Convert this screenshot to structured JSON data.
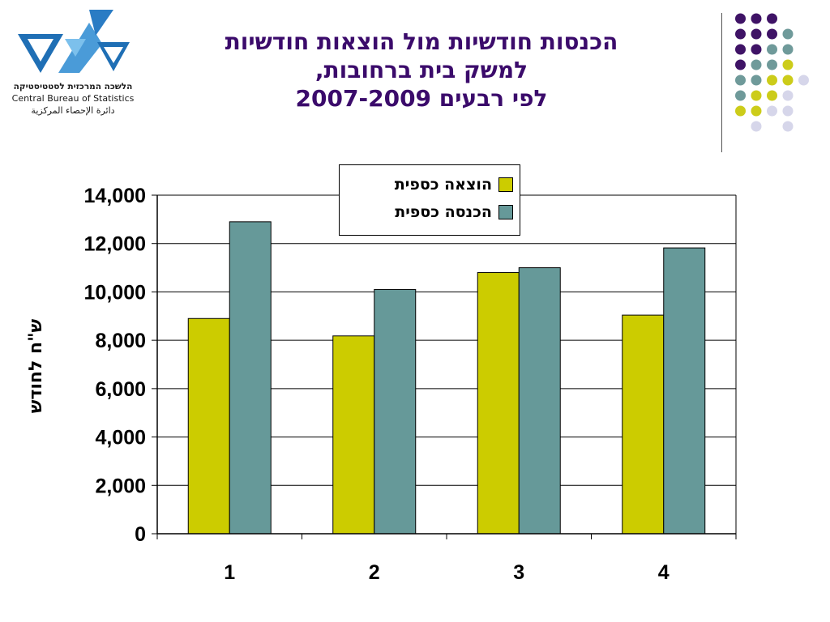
{
  "logo": {
    "name_he": "הלשכה המרכזית לסטטיסטיקה",
    "name_en": "Central Bureau of Statistics",
    "name_ar": "دائرة الإحصاء المركزية"
  },
  "title_lines": [
    "הכנסות חודשיות מול הוצאות חודשיות",
    "למשק בית ברחובות,",
    "לפי רבעים 2007-2009"
  ],
  "colors": {
    "title": "#3b0b6b",
    "expense": "#cccc00",
    "income": "#669999",
    "dot_purple": "#3f1366",
    "dot_teal": "#6f9a9a",
    "dot_yellow": "#cccc1a",
    "dot_lavender": "#d6d6ea"
  },
  "chart_data": {
    "type": "bar",
    "categories": [
      "1",
      "2",
      "3",
      "4"
    ],
    "series": [
      {
        "name": "הוצאה כספית",
        "values": [
          8900,
          8180,
          10800,
          9040
        ]
      },
      {
        "name": "הכנסה כספית",
        "values": [
          12900,
          10100,
          11000,
          11820
        ]
      }
    ],
    "ylabel": "ש\"ח לחודש",
    "ylim": [
      0,
      14000
    ],
    "y_ticks": [
      "0",
      "2,000",
      "4,000",
      "6,000",
      "8,000",
      "10,000",
      "12,000",
      "14,000"
    ],
    "grid": true,
    "legend_position": "top-right"
  }
}
